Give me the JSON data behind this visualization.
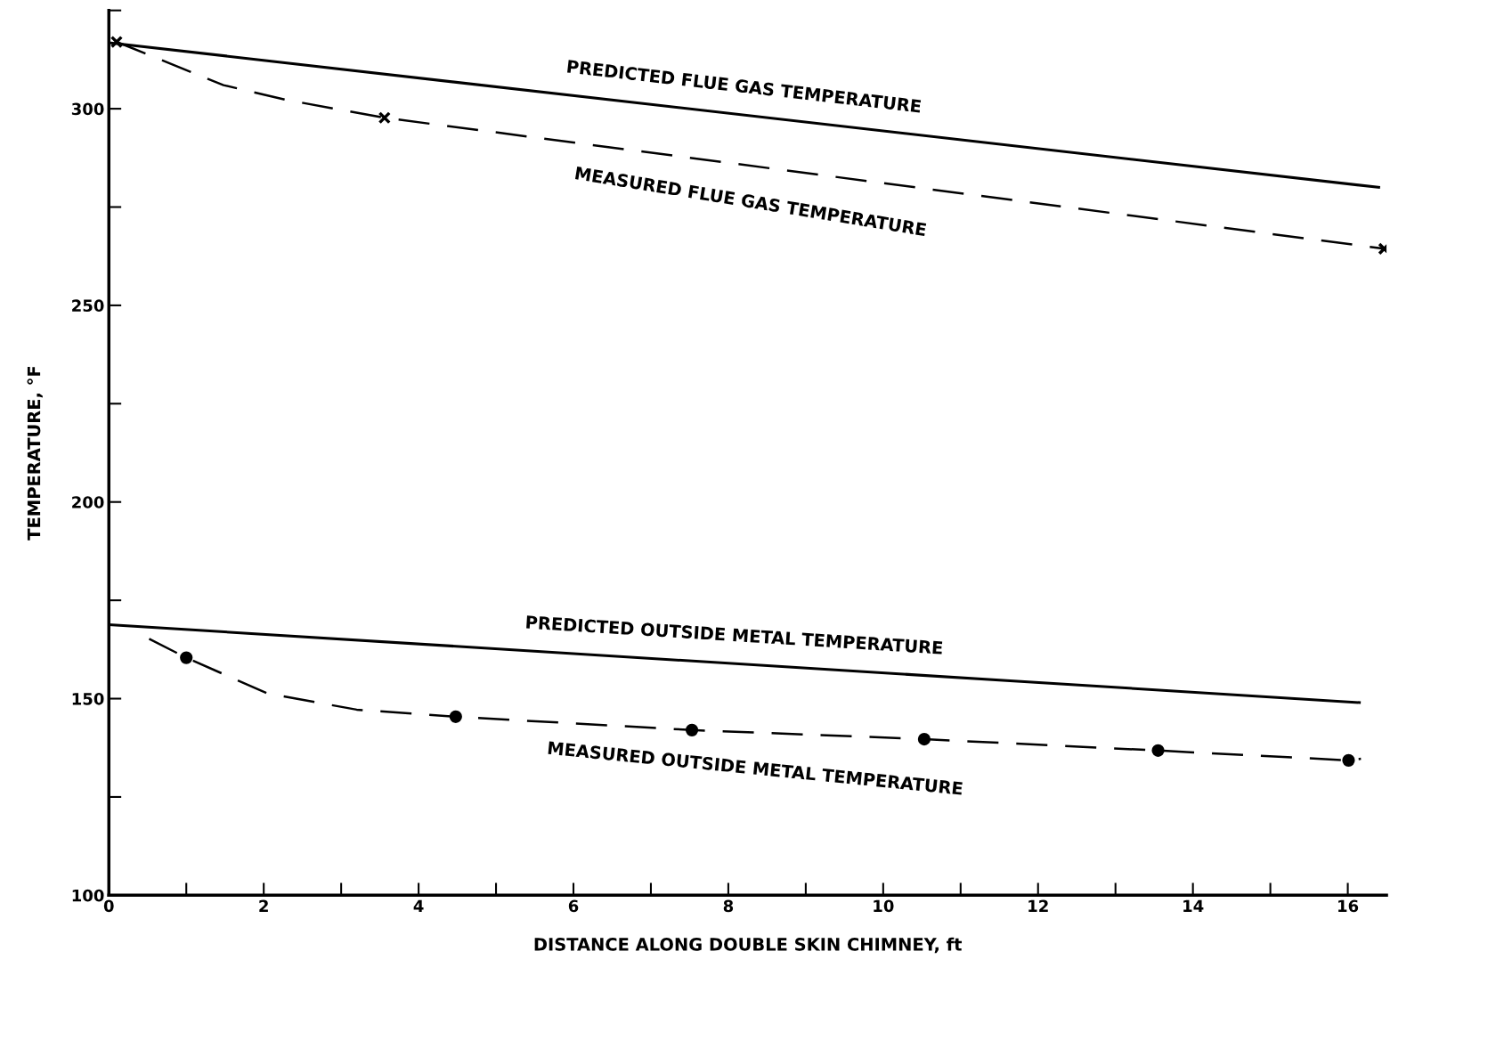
{
  "chart_data": {
    "type": "line",
    "xlabel": "DISTANCE ALONG DOUBLE SKIN CHIMNEY, ft",
    "ylabel": "TEMPERATURE, °F",
    "xlim": [
      0,
      16.5
    ],
    "ylim": [
      100,
      325
    ],
    "xticks": [
      0,
      {
        "value": 1,
        "label": null
      },
      2,
      {
        "value": 3,
        "label": null
      },
      4,
      {
        "value": 5,
        "label": null
      },
      6,
      {
        "value": 7,
        "label": null
      },
      8,
      {
        "value": 9,
        "label": null
      },
      10,
      {
        "value": 11,
        "label": null
      },
      12,
      {
        "value": 13,
        "label": null
      },
      14,
      {
        "value": 15,
        "label": null
      },
      16
    ],
    "yticks": [
      100,
      {
        "value": 125,
        "label": null
      },
      150,
      {
        "value": 175,
        "label": null
      },
      200,
      {
        "value": 225,
        "label": null
      },
      250,
      {
        "value": 275,
        "label": null
      },
      300,
      {
        "value": 325,
        "label": null
      }
    ],
    "grid": false,
    "legend": false,
    "series": [
      {
        "name": "PREDICTED FLUE GAS TEMPERATURE",
        "color": "#000000",
        "x": [
          0,
          16.4
        ],
        "values": [
          316.8,
          280.0
        ],
        "line_style": "solid",
        "marker": "none"
      },
      {
        "name": "MEASURED FLUE GAS TEMPERATURE",
        "color": "#000000",
        "x": [
          0.1,
          1.48,
          2.28,
          3.56,
          16.47
        ],
        "values": [
          317,
          306,
          302.3,
          297.7,
          264.4
        ],
        "line_style": "dashed",
        "marker": "none"
      },
      {
        "type": "scatter",
        "color": "#000000",
        "x": [
          0.1,
          3.56,
          16.47
        ],
        "values": [
          317,
          297.7,
          264.4
        ],
        "marker": "cross"
      },
      {
        "name": "PREDICTED OUTSIDE METAL TEMPERATURE",
        "color": "#000000",
        "x": [
          0,
          16.15
        ],
        "values": [
          168.8,
          149.0
        ],
        "line_style": "solid",
        "marker": "none"
      },
      {
        "name": "MEASURED OUTSIDE METAL TEMPERATURE",
        "color": "#000000",
        "x": [
          0.52,
          1.0,
          2.05,
          3.2,
          4.48,
          7.53,
          10.53,
          13.55,
          16.01,
          16.17
        ],
        "values": [
          165.2,
          160.4,
          151.3,
          147.2,
          145.4,
          142.0,
          139.7,
          136.8,
          134.3,
          134.7
        ],
        "line_style": "dashed",
        "marker": "none"
      },
      {
        "type": "scatter",
        "color": "#000000",
        "x": [
          1.0,
          4.48,
          7.53,
          10.53,
          13.55,
          16.01
        ],
        "values": [
          160.4,
          145.4,
          142.0,
          139.7,
          136.8,
          134.3
        ],
        "marker": "circle"
      }
    ]
  }
}
